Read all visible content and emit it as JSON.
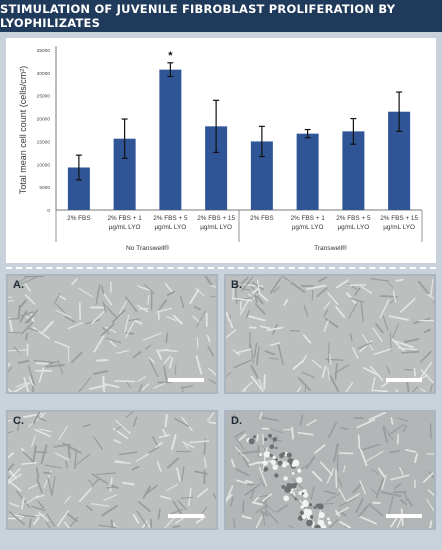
{
  "header": {
    "title": "STIMULATION OF JUVENILE  FIBROBLAST PROLIFERATION BY LYOPHILIZATES"
  },
  "colors": {
    "bar": "#2f5597",
    "header_bg": "#1f3a5a"
  },
  "chart_data": {
    "type": "bar",
    "title": "",
    "xlabel": "",
    "ylabel": "Total mean cell count (cells/cm²)",
    "ylim": [
      0,
      35000
    ],
    "yticks": [
      "0",
      "5000",
      "10000",
      "15000",
      "20000",
      "25000",
      "30000",
      "35000"
    ],
    "categories": [
      [
        "2% FBS"
      ],
      [
        "2% FBS + 1",
        "µg/mL LYO"
      ],
      [
        "2% FBS + 5",
        "µg/mL LYO"
      ],
      [
        "2% FBS + 15",
        "µg/mL LYO"
      ],
      [
        "2% FBS"
      ],
      [
        "2% FBS + 1",
        "µg/mL LYO"
      ],
      [
        "2% FBS + 5",
        "µg/mL LYO"
      ],
      [
        "2% FBS + 15",
        "µg/mL LYO"
      ]
    ],
    "values": [
      9300,
      15600,
      30700,
      18300,
      15000,
      16700,
      17200,
      21500
    ],
    "errors": [
      2700,
      4300,
      1500,
      5700,
      3300,
      900,
      2800,
      4300
    ],
    "groups": [
      {
        "label": "No Transwell®",
        "start": 0,
        "end": 3
      },
      {
        "label": "Transwell®",
        "start": 4,
        "end": 7
      }
    ],
    "annotations": [
      {
        "index": 2,
        "text": "*"
      }
    ],
    "grid": false,
    "legend": "none"
  },
  "panels": [
    {
      "label": "A."
    },
    {
      "label": "B."
    },
    {
      "label": "C."
    },
    {
      "label": "D."
    }
  ]
}
